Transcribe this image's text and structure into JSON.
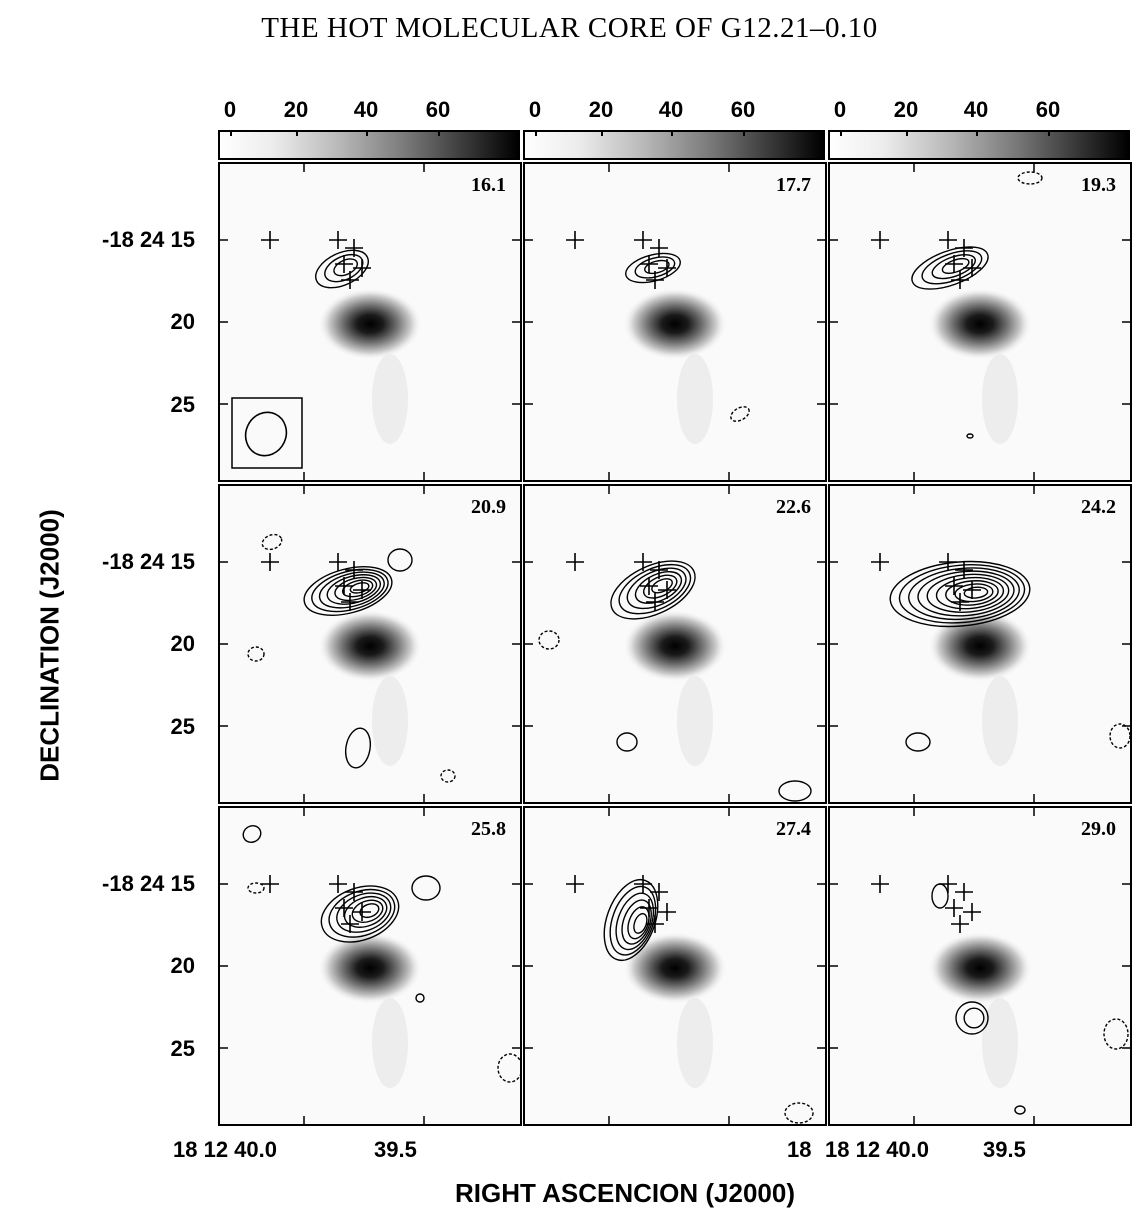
{
  "title": "THE HOT MOLECULAR CORE OF G12.21–0.10",
  "colorbar": {
    "ticks": [
      "0",
      "20",
      "40",
      "60"
    ]
  },
  "y_tick_labels": [
    "-18 24 15",
    "20",
    "25"
  ],
  "x_tick_labels_left": [
    "18 12 40.0",
    "39.5"
  ],
  "x_tick_labels_mid": [
    "18"
  ],
  "x_axis_title": "RIGHT ASCENCION (J2000)",
  "y_axis_title": "DECLINATION (J2000)",
  "panels": [
    {
      "velocity": "16.1"
    },
    {
      "velocity": "17.7"
    },
    {
      "velocity": "19.3"
    },
    {
      "velocity": "20.9"
    },
    {
      "velocity": "22.6"
    },
    {
      "velocity": "24.2"
    },
    {
      "velocity": "25.8"
    },
    {
      "velocity": "27.4"
    },
    {
      "velocity": "29.0"
    }
  ]
}
